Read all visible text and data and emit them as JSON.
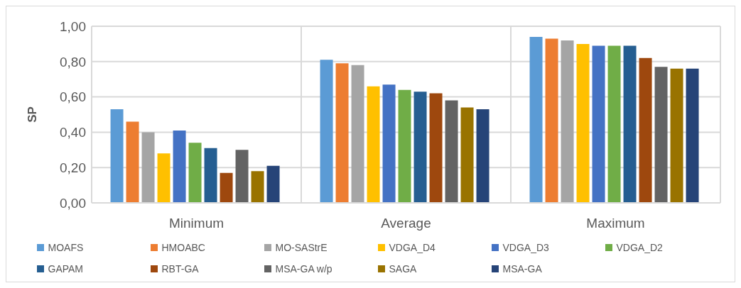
{
  "chart_data": {
    "type": "bar",
    "ylabel": "SP",
    "categories": [
      "Minimum",
      "Average",
      "Maximum"
    ],
    "series": [
      {
        "name": "MOAFS",
        "color": "#5b9bd5",
        "values": [
          0.53,
          0.81,
          0.94
        ]
      },
      {
        "name": "HMOABC",
        "color": "#ed7d31",
        "values": [
          0.46,
          0.79,
          0.93
        ]
      },
      {
        "name": "MO-SAStrE",
        "color": "#a5a5a5",
        "values": [
          0.4,
          0.78,
          0.92
        ]
      },
      {
        "name": "VDGA_D4",
        "color": "#ffc000",
        "values": [
          0.28,
          0.66,
          0.9
        ]
      },
      {
        "name": "VDGA_D3",
        "color": "#4472c4",
        "values": [
          0.41,
          0.67,
          0.89
        ]
      },
      {
        "name": "VDGA_D2",
        "color": "#70ad47",
        "values": [
          0.34,
          0.64,
          0.89
        ]
      },
      {
        "name": "GAPAM",
        "color": "#255e91",
        "values": [
          0.31,
          0.63,
          0.89
        ]
      },
      {
        "name": "RBT-GA",
        "color": "#9e480e",
        "values": [
          0.17,
          0.62,
          0.82
        ]
      },
      {
        "name": "MSA-GA w/p",
        "color": "#636363",
        "values": [
          0.3,
          0.58,
          0.77
        ]
      },
      {
        "name": "SAGA",
        "color": "#997300",
        "values": [
          0.18,
          0.54,
          0.76
        ]
      },
      {
        "name": "MSA-GA",
        "color": "#264478",
        "values": [
          0.21,
          0.53,
          0.76
        ]
      }
    ],
    "ylim": [
      0,
      1
    ],
    "yticks": [
      {
        "value": 0,
        "label": "0,00"
      },
      {
        "value": 0.2,
        "label": "0,20"
      },
      {
        "value": 0.4,
        "label": "0,40"
      },
      {
        "value": 0.6,
        "label": "0,60"
      },
      {
        "value": 0.8,
        "label": "0,80"
      },
      {
        "value": 1,
        "label": "1,00"
      }
    ],
    "grid": true,
    "legend": "bottom"
  }
}
